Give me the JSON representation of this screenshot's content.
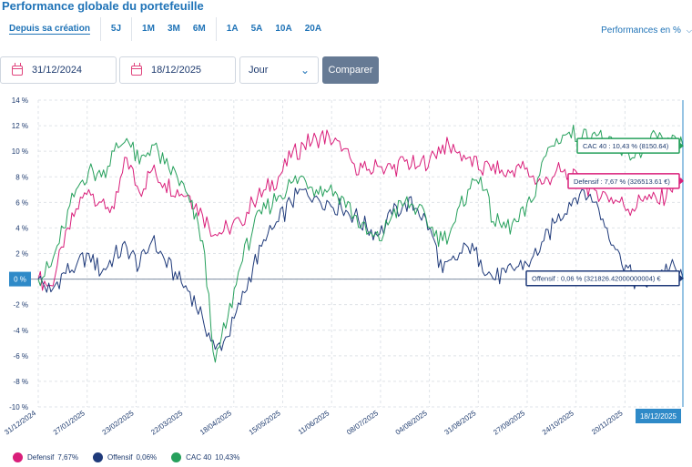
{
  "header": {
    "title": "Performance globale du portefeuille"
  },
  "ranges": [
    {
      "label": "Depuis sa création",
      "active": true,
      "group": 0
    },
    {
      "label": "5J",
      "group": 1
    },
    {
      "label": "1M",
      "group": 2
    },
    {
      "label": "3M",
      "group": 2
    },
    {
      "label": "6M",
      "group": 2
    },
    {
      "label": "1A",
      "group": 3
    },
    {
      "label": "5A",
      "group": 3
    },
    {
      "label": "10A",
      "group": 3
    },
    {
      "label": "20A",
      "group": 3
    }
  ],
  "perf_mode": {
    "label": "Performances en %"
  },
  "controls": {
    "start_date": "31/12/2024",
    "end_date": "18/12/2025",
    "period": "Jour",
    "compare_label": "Comparer"
  },
  "colors": {
    "defensif": "#d91e7a",
    "offensif": "#1f3a7a",
    "cac40": "#26a05c",
    "accent": "#1f73b7",
    "crosshair": "#2f8ac8"
  },
  "legend": [
    {
      "label": "Defensif",
      "value": "7,67%",
      "series": "defensif"
    },
    {
      "label": "Offensif",
      "value": "0,06%",
      "series": "offensif"
    },
    {
      "label": "CAC 40",
      "value": "10,43%",
      "series": "cac40"
    }
  ],
  "chart_data": {
    "type": "line",
    "ylim": [
      -10,
      14
    ],
    "y_ticks": [
      "14 %",
      "12 %",
      "10 %",
      "8 %",
      "6 %",
      "4 %",
      "2 %",
      "0 %",
      "-2 %",
      "-4 %",
      "-6 %",
      "-8 %",
      "-10 %"
    ],
    "x_ticks": [
      "31/12/2024",
      "27/01/2025",
      "23/02/2025",
      "22/03/2025",
      "18/04/2025",
      "15/05/2025",
      "11/06/2025",
      "08/07/2025",
      "04/08/2025",
      "31/08/2025",
      "27/09/2025",
      "24/10/2025",
      "20/11/2025"
    ],
    "zero_label": "0 %",
    "cursor_date": "18/12/2025",
    "grid": true,
    "x_dates": [
      "31/12/2024",
      "08/01/2025",
      "15/01/2025",
      "22/01/2025",
      "29/01/2025",
      "05/02/2025",
      "12/02/2025",
      "19/02/2025",
      "26/02/2025",
      "05/03/2025",
      "12/03/2025",
      "19/03/2025",
      "26/03/2025",
      "02/04/2025",
      "07/04/2025",
      "09/04/2025",
      "16/04/2025",
      "23/04/2025",
      "30/04/2025",
      "07/05/2025",
      "14/05/2025",
      "21/05/2025",
      "28/05/2025",
      "04/06/2025",
      "11/06/2025",
      "18/06/2025",
      "25/06/2025",
      "02/07/2025",
      "09/07/2025",
      "16/07/2025",
      "23/07/2025",
      "30/07/2025",
      "06/08/2025",
      "13/08/2025",
      "20/08/2025",
      "27/08/2025",
      "03/09/2025",
      "10/09/2025",
      "17/09/2025",
      "24/09/2025",
      "01/10/2025",
      "08/10/2025",
      "15/10/2025",
      "22/10/2025",
      "29/10/2025",
      "05/11/2025",
      "12/11/2025",
      "19/11/2025",
      "26/11/2025",
      "03/12/2025",
      "10/12/2025",
      "18/12/2025"
    ],
    "series": [
      {
        "name": "Defensif",
        "key": "defensif",
        "tooltip": "Defensif : 7,67 % (326513.61 €)",
        "values": [
          0,
          -0.5,
          2.5,
          5.5,
          7.0,
          6.0,
          5.5,
          9.5,
          6.8,
          8.5,
          7.5,
          7.0,
          6.5,
          5.0,
          3.5,
          4.0,
          4.5,
          6.0,
          7.0,
          8.0,
          9.5,
          10.5,
          11.0,
          11.2,
          10.0,
          9.0,
          8.5,
          8.8,
          8.6,
          9.2,
          8.8,
          9.5,
          10.5,
          10.0,
          9.5,
          8.5,
          9.0,
          8.0,
          9.0,
          8.0,
          7.5,
          8.5,
          8.0,
          7.5,
          7.0,
          6.5,
          6.0,
          5.5,
          6.5,
          6.0,
          7.0,
          7.67
        ]
      },
      {
        "name": "Offensif",
        "key": "offensif",
        "tooltip": "Offensif : 0,06 % (321826.42000000004) €",
        "values": [
          0,
          -1.0,
          0.5,
          1.0,
          2.0,
          0.5,
          1.8,
          2.5,
          1.0,
          3.0,
          1.5,
          0.0,
          -1.0,
          -3.0,
          -5.5,
          -4.5,
          -2.0,
          1.0,
          3.0,
          4.5,
          6.0,
          7.0,
          6.5,
          6.0,
          5.5,
          5.0,
          4.0,
          3.5,
          5.0,
          6.0,
          5.5,
          4.0,
          0.5,
          1.5,
          2.5,
          1.5,
          0.0,
          0.5,
          1.0,
          1.5,
          3.0,
          4.5,
          6.0,
          7.0,
          6.0,
          4.0,
          2.0,
          0.0,
          -0.5,
          0.5,
          1.0,
          0.06
        ]
      },
      {
        "name": "CAC 40",
        "key": "cac40",
        "tooltip": "CAC 40 : 10,43 % (8150.64)",
        "values": [
          0,
          1.0,
          4.0,
          7.0,
          8.5,
          8.0,
          10.0,
          11.0,
          9.0,
          10.5,
          9.0,
          8.0,
          6.0,
          3.0,
          -6.5,
          -3.0,
          1.0,
          4.0,
          5.5,
          6.5,
          7.5,
          8.0,
          7.0,
          7.0,
          6.5,
          5.0,
          3.5,
          3.0,
          5.0,
          6.0,
          5.5,
          4.0,
          3.0,
          4.5,
          7.0,
          8.0,
          4.5,
          4.0,
          4.5,
          6.0,
          9.5,
          11.0,
          11.5,
          11.0,
          11.5,
          10.5,
          10.0,
          9.5,
          10.5,
          11.0,
          10.5,
          10.43
        ]
      }
    ]
  }
}
